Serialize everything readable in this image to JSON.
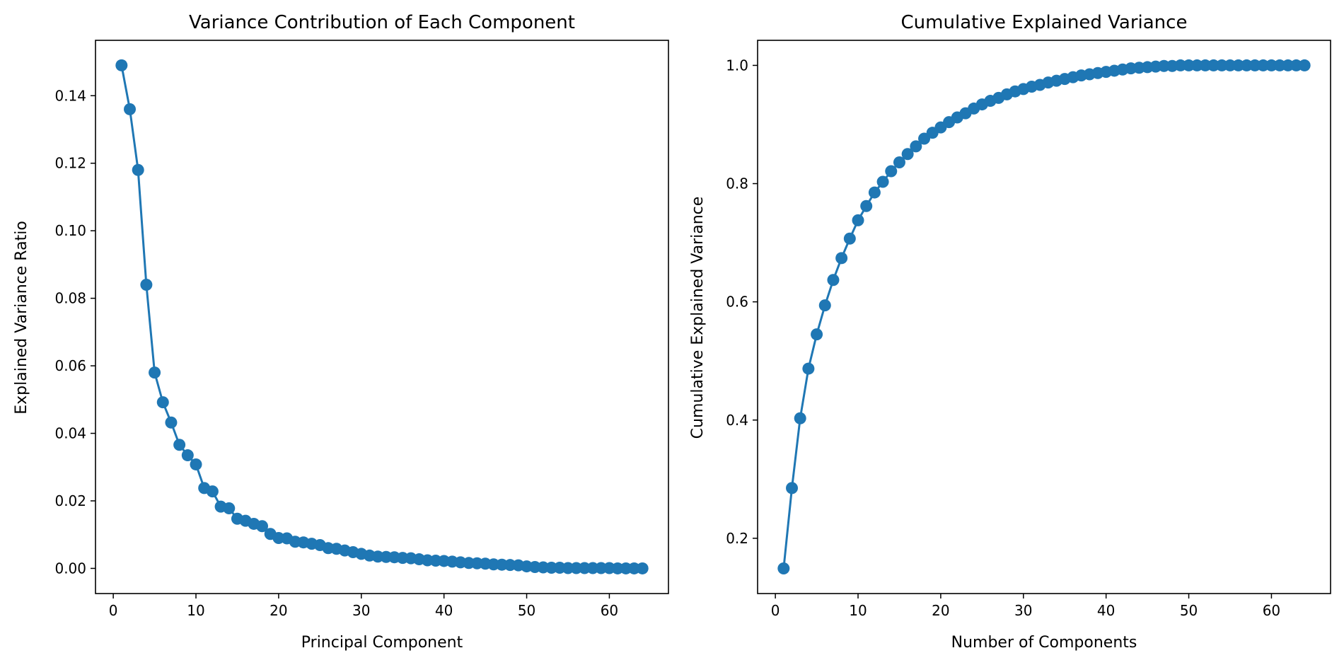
{
  "colors": {
    "series": "#1f77b4",
    "axes": "#000000",
    "background": "#ffffff"
  },
  "chart_data": [
    {
      "type": "line",
      "marker": "circle",
      "title": "Variance Contribution of Each Component",
      "xlabel": "Principal Component",
      "ylabel": "Explained Variance Ratio",
      "xlim": [
        -2.15,
        67.15
      ],
      "ylim": [
        -0.00745,
        0.1564
      ],
      "xticks": [
        0,
        10,
        20,
        30,
        40,
        50,
        60
      ],
      "xtick_labels": [
        "0",
        "10",
        "20",
        "30",
        "40",
        "50",
        "60"
      ],
      "yticks": [
        0.0,
        0.02,
        0.04,
        0.06,
        0.08,
        0.1,
        0.12,
        0.14
      ],
      "ytick_labels": [
        "0.00",
        "0.02",
        "0.04",
        "0.06",
        "0.08",
        "0.10",
        "0.12",
        "0.14"
      ],
      "grid": false,
      "series": [
        {
          "x": [
            1,
            2,
            3,
            4,
            5,
            6,
            7,
            8,
            9,
            10,
            11,
            12,
            13,
            14,
            15,
            16,
            17,
            18,
            19,
            20,
            21,
            22,
            23,
            24,
            25,
            26,
            27,
            28,
            29,
            30,
            31,
            32,
            33,
            34,
            35,
            36,
            37,
            38,
            39,
            40,
            41,
            42,
            43,
            44,
            45,
            46,
            47,
            48,
            49,
            50,
            51,
            52,
            53,
            54,
            55,
            56,
            57,
            58,
            59,
            60,
            61,
            62,
            63,
            64
          ],
          "values": [
            0.149,
            0.136,
            0.118,
            0.084,
            0.058,
            0.0492,
            0.0432,
            0.0366,
            0.0335,
            0.0308,
            0.0238,
            0.0228,
            0.0183,
            0.0178,
            0.0147,
            0.0141,
            0.0132,
            0.0125,
            0.0102,
            0.009,
            0.0089,
            0.0079,
            0.0077,
            0.0073,
            0.0069,
            0.006,
            0.0058,
            0.0053,
            0.0048,
            0.0043,
            0.0038,
            0.0035,
            0.0034,
            0.0033,
            0.0031,
            0.003,
            0.0027,
            0.0024,
            0.0023,
            0.0022,
            0.002,
            0.0018,
            0.0016,
            0.0015,
            0.0014,
            0.0012,
            0.0011,
            0.001,
            0.0009,
            0.0006,
            0.0004,
            0.0003,
            0.0002,
            0.0002,
            0.0001,
            0.0001,
            0.0001,
            0.0001,
            0.0001,
            0.0001,
            0.0,
            0.0,
            0.0,
            0.0
          ]
        }
      ]
    },
    {
      "type": "line",
      "marker": "circle",
      "title": "Cumulative Explained Variance",
      "xlabel": "Number of Components",
      "ylabel": "Cumulative Explained Variance",
      "xlim": [
        -2.15,
        67.15
      ],
      "ylim": [
        0.1065,
        1.0424
      ],
      "xticks": [
        0,
        10,
        20,
        30,
        40,
        50,
        60
      ],
      "xtick_labels": [
        "0",
        "10",
        "20",
        "30",
        "40",
        "50",
        "60"
      ],
      "yticks": [
        0.2,
        0.4,
        0.6,
        0.8,
        1.0
      ],
      "ytick_labels": [
        "0.2",
        "0.4",
        "0.6",
        "0.8",
        "1.0"
      ],
      "grid": false,
      "series": [
        {
          "x": [
            1,
            2,
            3,
            4,
            5,
            6,
            7,
            8,
            9,
            10,
            11,
            12,
            13,
            14,
            15,
            16,
            17,
            18,
            19,
            20,
            21,
            22,
            23,
            24,
            25,
            26,
            27,
            28,
            29,
            30,
            31,
            32,
            33,
            34,
            35,
            36,
            37,
            38,
            39,
            40,
            41,
            42,
            43,
            44,
            45,
            46,
            47,
            48,
            49,
            50,
            51,
            52,
            53,
            54,
            55,
            56,
            57,
            58,
            59,
            60,
            61,
            62,
            63,
            64
          ],
          "values": [
            0.149,
            0.285,
            0.403,
            0.487,
            0.545,
            0.594,
            0.637,
            0.674,
            0.707,
            0.738,
            0.762,
            0.785,
            0.803,
            0.821,
            0.836,
            0.85,
            0.863,
            0.876,
            0.886,
            0.895,
            0.904,
            0.912,
            0.919,
            0.927,
            0.934,
            0.94,
            0.945,
            0.951,
            0.956,
            0.96,
            0.964,
            0.967,
            0.971,
            0.974,
            0.977,
            0.98,
            0.983,
            0.985,
            0.987,
            0.989,
            0.991,
            0.993,
            0.995,
            0.996,
            0.997,
            0.998,
            0.999,
            0.999,
            1.0,
            1.0,
            1.0,
            1.0,
            1.0,
            1.0,
            1.0,
            1.0,
            1.0,
            1.0,
            1.0,
            1.0,
            1.0,
            1.0,
            1.0,
            1.0
          ]
        }
      ]
    }
  ]
}
